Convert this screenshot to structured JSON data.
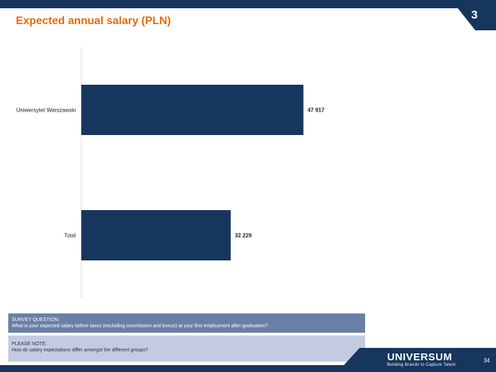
{
  "slide": {
    "title": "Expected annual salary (PLN)",
    "section_number": "3",
    "page_number": "34"
  },
  "colors": {
    "title": "#e46c0a",
    "bar": "#17365d",
    "header_bar": "#17365d",
    "question_box": "#6b7fa6",
    "note_box": "#c4cbe0"
  },
  "chart_data": {
    "type": "bar",
    "orientation": "horizontal",
    "categories": [
      "Uniwersytet Warszawski",
      "Total"
    ],
    "values": [
      47917,
      32229
    ],
    "value_labels": [
      "47 917",
      "32 229"
    ],
    "xlim": [
      0,
      85000
    ],
    "grid": false,
    "legend": "none"
  },
  "survey": {
    "question_label": "SURVEY QUESTION:",
    "question_text": "What is your expected salary before taxes (excluding commission and bonus) at your first employment after graduation?",
    "note_label": "PLEASE NOTE:",
    "note_text": "How do salary expectations differ amongst the different groups?"
  },
  "brand": {
    "name": "UNIVERSUM",
    "tagline": "Building Brands to Capture Talent"
  }
}
